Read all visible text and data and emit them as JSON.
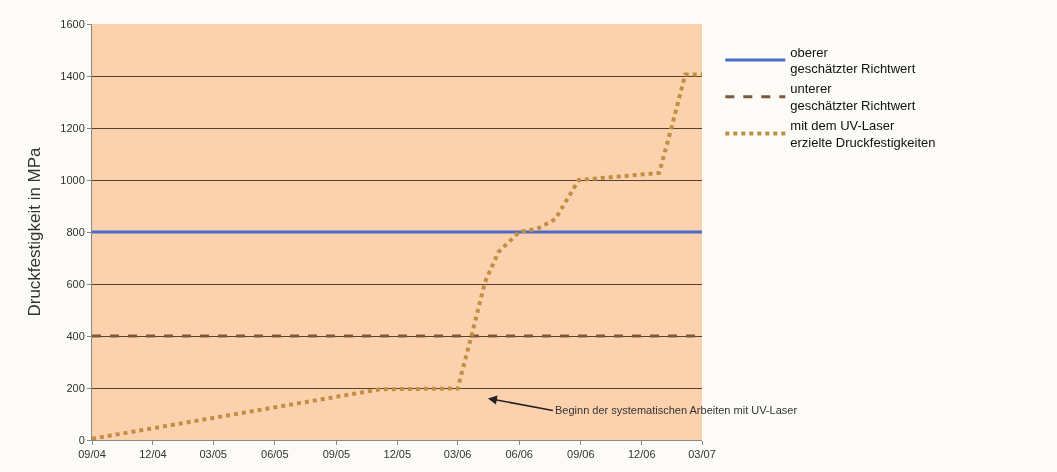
{
  "chart_data": {
    "type": "line",
    "ylabel": "Druckfestigkeit in MPa",
    "xlim": [
      "2004-09-01",
      "2007-03-01"
    ],
    "xticks": [
      {
        "value": "2004-09-01",
        "label": "09/04"
      },
      {
        "value": "2004-12-01",
        "label": "12/04"
      },
      {
        "value": "2005-03-01",
        "label": "03/05"
      },
      {
        "value": "2005-06-01",
        "label": "06/05"
      },
      {
        "value": "2005-09-01",
        "label": "09/05"
      },
      {
        "value": "2005-12-01",
        "label": "12/05"
      },
      {
        "value": "2006-03-01",
        "label": "03/06"
      },
      {
        "value": "2006-06-01",
        "label": "06/06"
      },
      {
        "value": "2006-09-01",
        "label": "09/06"
      },
      {
        "value": "2006-12-01",
        "label": "12/06"
      },
      {
        "value": "2007-03-01",
        "label": "03/07"
      }
    ],
    "ylim": [
      0,
      1600
    ],
    "yticks": [
      0,
      200,
      400,
      600,
      800,
      1000,
      1200,
      1400,
      1600
    ],
    "grid": "y",
    "legend": "right",
    "series": [
      {
        "name": "oberer\ngeschätzter Richtwert",
        "color": "#4a6cc8",
        "line_style": "solid",
        "x": [
          "2004-09-01",
          "2007-03-01"
        ],
        "values": [
          800,
          800
        ]
      },
      {
        "name": "unterer\ngeschätzter Richtwert",
        "color": "#7a5a3a",
        "line_style": "dashed",
        "x": [
          "2004-09-01",
          "2007-03-01"
        ],
        "values": [
          400,
          400
        ]
      },
      {
        "name": "mit dem UV-Laser\nerzielte Druckfestigkeiten",
        "color": "#c09040",
        "line_style": "dotted",
        "x": [
          "2004-09-01",
          "2005-11-05",
          "2006-03-01",
          "2006-03-22",
          "2006-04-11",
          "2006-05-01",
          "2006-06-01",
          "2006-06-28",
          "2006-07-25",
          "2006-08-29",
          "2006-12-27",
          "2007-01-15",
          "2007-02-04",
          "2007-03-01"
        ],
        "values": [
          5,
          195,
          198,
          403,
          608,
          723,
          800,
          812,
          850,
          1000,
          1027,
          1207,
          1406,
          1406
        ]
      }
    ],
    "annotations": [
      "Beginn der systematischen Arbeiten mit UV-Laser"
    ]
  }
}
